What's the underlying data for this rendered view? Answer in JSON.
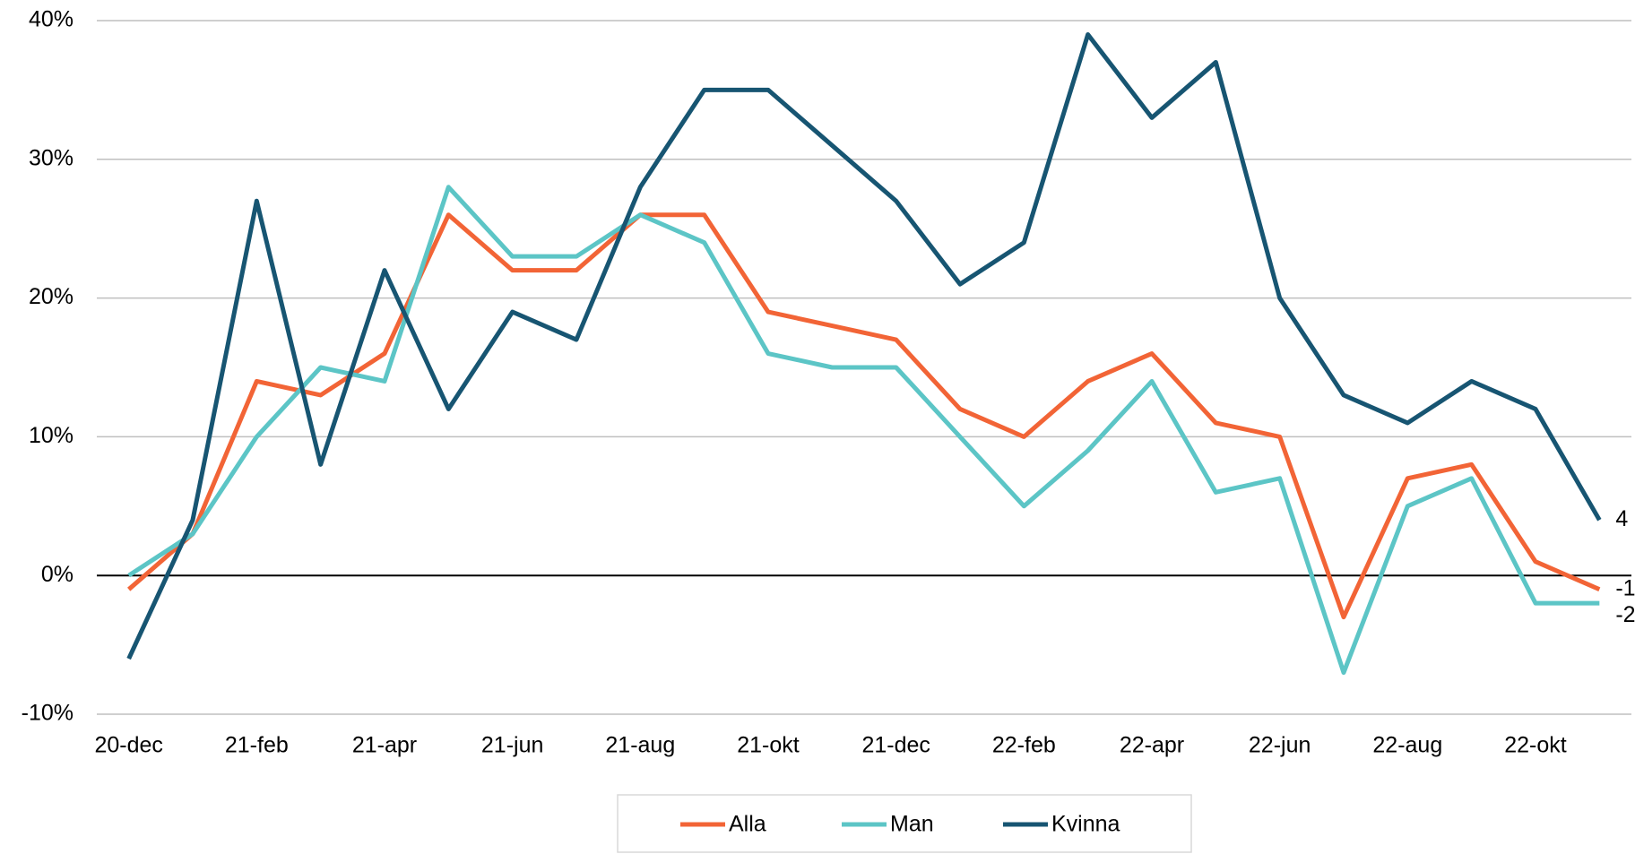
{
  "chart_data": {
    "type": "line",
    "categories": [
      "20-dec",
      null,
      "21-feb",
      null,
      "21-apr",
      null,
      "21-jun",
      null,
      "21-aug",
      null,
      "21-okt",
      null,
      "21-dec",
      null,
      "22-feb",
      null,
      "22-apr",
      null,
      "22-jun",
      null,
      "22-aug",
      null,
      "22-okt",
      null
    ],
    "series": [
      {
        "name": "Alla",
        "color": "#f26436",
        "values": [
          -1,
          3,
          14,
          13,
          16,
          26,
          22,
          22,
          26,
          26,
          19,
          18,
          17,
          12,
          10,
          14,
          16,
          11,
          10,
          -3,
          7,
          8,
          1,
          -1
        ]
      },
      {
        "name": "Man",
        "color": "#5cc5c6",
        "values": [
          0,
          3,
          10,
          15,
          14,
          28,
          23,
          23,
          26,
          24,
          16,
          15,
          15,
          10,
          5,
          9,
          14,
          6,
          7,
          -7,
          5,
          7,
          -2,
          -2
        ]
      },
      {
        "name": "Kvinna",
        "color": "#175572",
        "values": [
          -6,
          4,
          27,
          8,
          22,
          12,
          19,
          17,
          28,
          35,
          35,
          31,
          27,
          21,
          24,
          39,
          33,
          37,
          20,
          13,
          11,
          14,
          12,
          4
        ]
      }
    ],
    "ylim": [
      -10,
      40
    ],
    "yticks": [
      {
        "value": -10,
        "label": "-10%"
      },
      {
        "value": 0,
        "label": "0%"
      },
      {
        "value": 10,
        "label": "10%"
      },
      {
        "value": 20,
        "label": "20%"
      },
      {
        "value": 30,
        "label": "30%"
      },
      {
        "value": 40,
        "label": "40%"
      }
    ],
    "grid": true,
    "legend": "bottom"
  }
}
